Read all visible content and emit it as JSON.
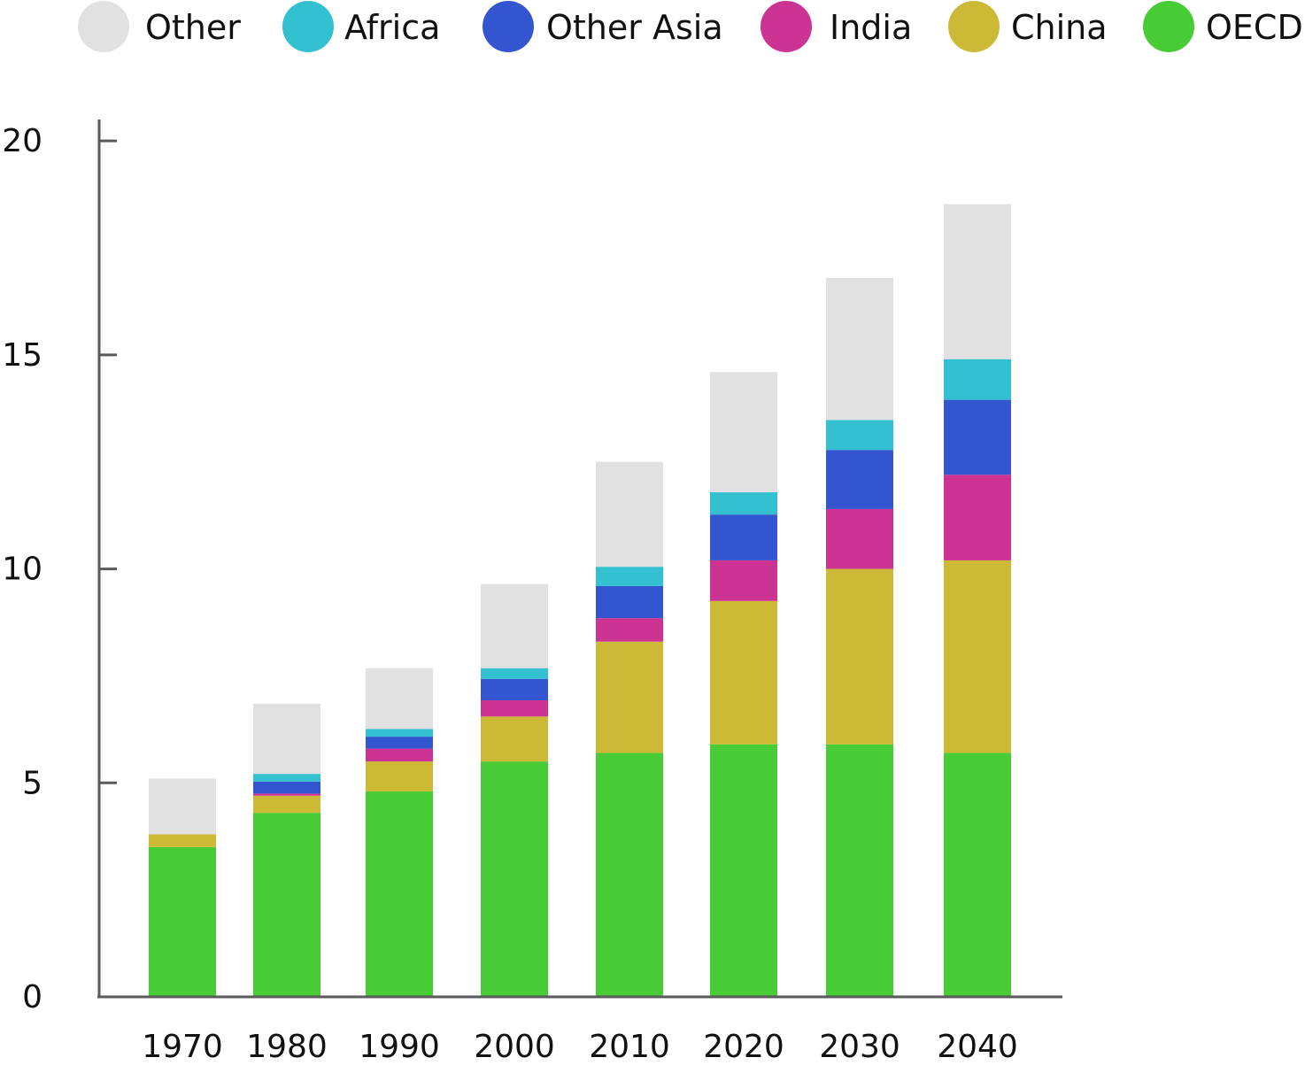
{
  "chart_data": {
    "type": "bar",
    "stacked": true,
    "categories": [
      "1970",
      "1980",
      "1990",
      "2000",
      "2010",
      "2020",
      "2030",
      "2040"
    ],
    "series": [
      {
        "name": "OECD",
        "color": "#48cc36",
        "values": [
          3.5,
          4.3,
          4.8,
          5.5,
          5.7,
          5.9,
          5.9,
          5.7
        ]
      },
      {
        "name": "China",
        "color": "#ccb935",
        "values": [
          0.3,
          0.4,
          0.7,
          1.05,
          2.6,
          3.35,
          4.1,
          4.5
        ]
      },
      {
        "name": "India",
        "color": "#cc3392",
        "values": [
          0.0,
          0.05,
          0.3,
          0.38,
          0.55,
          0.95,
          1.4,
          2.0
        ]
      },
      {
        "name": "Other Asia",
        "color": "#3355d0",
        "values": [
          0.0,
          0.28,
          0.28,
          0.5,
          0.75,
          1.07,
          1.38,
          1.75
        ]
      },
      {
        "name": "Africa",
        "color": "#33c1d1",
        "values": [
          0.0,
          0.18,
          0.18,
          0.25,
          0.45,
          0.52,
          0.7,
          0.95
        ]
      },
      {
        "name": "Other",
        "color": "#e1e1e1",
        "values": [
          1.3,
          1.64,
          1.42,
          1.97,
          2.45,
          2.81,
          3.32,
          3.62
        ]
      }
    ],
    "legend": {
      "placement": "top",
      "order": [
        "Other",
        "Africa",
        "Other Asia",
        "India",
        "China",
        "OECD"
      ]
    },
    "y_ticks": [
      "0",
      "5",
      "10",
      "15",
      "20"
    ],
    "ylim": [
      0,
      20.5
    ],
    "grid": false,
    "title": "",
    "xlabel": "",
    "ylabel": ""
  }
}
